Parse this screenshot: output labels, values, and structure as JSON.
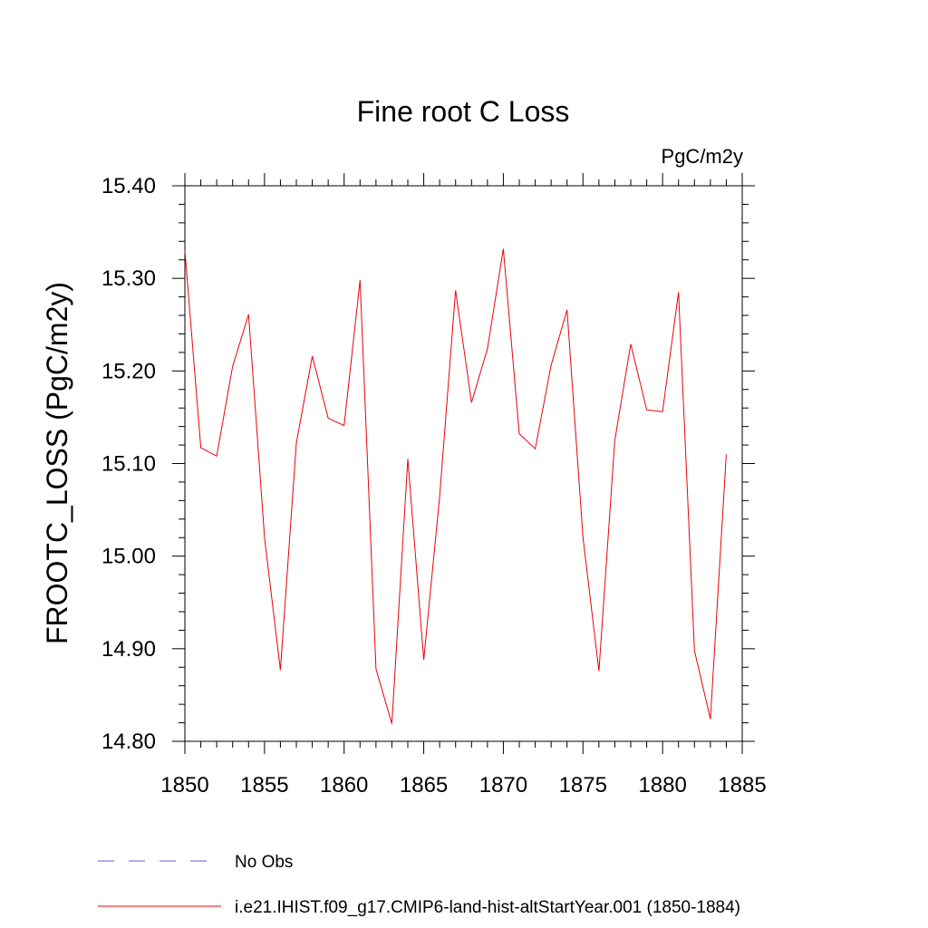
{
  "chart_data": {
    "type": "line",
    "title": "Fine root C Loss",
    "units_label": "PgC/m2y",
    "ylabel": "FROOTC_LOSS  (PgC/m2y)",
    "xlabel": "",
    "xlim": [
      1850,
      1885
    ],
    "ylim": [
      14.8,
      15.4
    ],
    "x_ticks": [
      1850,
      1855,
      1860,
      1865,
      1870,
      1875,
      1880,
      1885
    ],
    "x_tick_labels": [
      "1850",
      "1855",
      "1860",
      "1865",
      "1870",
      "1875",
      "1880",
      "1885"
    ],
    "y_ticks": [
      14.8,
      14.9,
      15.0,
      15.1,
      15.2,
      15.3,
      15.4
    ],
    "y_tick_labels": [
      "14.80",
      "14.90",
      "15.00",
      "15.10",
      "15.20",
      "15.30",
      "15.40"
    ],
    "grid": false,
    "legend_position": "bottom-left",
    "series": [
      {
        "name": "i.e21.IHIST.f09_g17.CMIP6-land-hist-altStartYear.001 (1850-1884)",
        "color": "#e8000b",
        "line_style": "solid",
        "x": [
          1850,
          1851,
          1852,
          1853,
          1854,
          1855,
          1856,
          1857,
          1858,
          1859,
          1860,
          1861,
          1862,
          1863,
          1864,
          1865,
          1866,
          1867,
          1868,
          1869,
          1870,
          1871,
          1872,
          1873,
          1874,
          1875,
          1876,
          1877,
          1878,
          1879,
          1880,
          1881,
          1882,
          1883,
          1884
        ],
        "y": [
          15.33,
          15.117,
          15.108,
          15.205,
          15.261,
          15.02,
          14.877,
          15.122,
          15.216,
          15.149,
          15.141,
          15.298,
          14.878,
          14.819,
          15.105,
          14.888,
          15.064,
          15.287,
          15.166,
          15.224,
          15.332,
          15.132,
          15.116,
          15.206,
          15.266,
          15.02,
          14.876,
          15.125,
          15.229,
          15.158,
          15.156,
          15.285,
          14.898,
          14.824,
          15.11
        ]
      }
    ],
    "legend": [
      {
        "label": "No Obs",
        "color": "#6a5acd",
        "line_style": "dashed"
      },
      {
        "label": "i.e21.IHIST.f09_g17.CMIP6-land-hist-altStartYear.001 (1850-1884)",
        "color": "#e8000b",
        "line_style": "solid"
      }
    ]
  }
}
